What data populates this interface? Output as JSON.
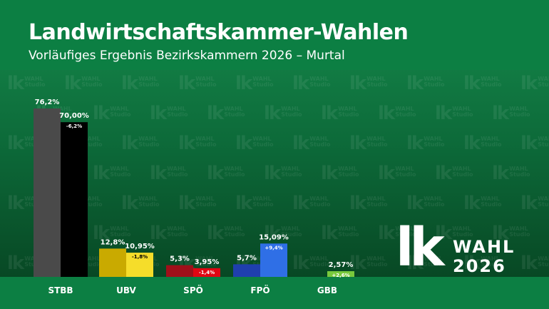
{
  "header": {
    "title": "Landwirtschaftskammer-Wahlen",
    "subtitle": "Vorläufiges Ergebnis Bezirkskammern 2026 – Murtal"
  },
  "watermark": {
    "mark": "lk",
    "word": "WAHL",
    "sub": "Studio"
  },
  "logo": {
    "mark": "lk",
    "word": "WAHL",
    "year": "2026"
  },
  "chart_data": {
    "type": "bar",
    "categories": [
      "STBB",
      "UBV",
      "SPÖ",
      "FPÖ",
      "GBB"
    ],
    "series": [
      {
        "values": [
          76.2,
          12.8,
          5.3,
          5.7,
          null
        ],
        "labels": [
          "76,2%",
          "12,8%",
          "5,3%",
          "5,7%",
          ""
        ]
      },
      {
        "values": [
          70.0,
          10.95,
          3.95,
          15.09,
          2.57
        ],
        "labels": [
          "70,00%",
          "10,95%",
          "3,95%",
          "15,09%",
          "2,57%"
        ]
      }
    ],
    "changes": [
      "-6,2%",
      "-1,8%",
      "-1,4%",
      "+9,4%",
      "+2,6%"
    ],
    "colors": {
      "previous": [
        "#4a4a4a",
        "#c9aa00",
        "#a0101a",
        "#1f3fae",
        "#4a4a4a"
      ],
      "current": [
        "#000000",
        "#f5dd2a",
        "#e30613",
        "#2f6fe6",
        "#78c93c"
      ],
      "change_text": [
        "#ffffff",
        "#000000",
        "#ffffff",
        "#ffffff",
        "#ffffff"
      ]
    },
    "ylim": [
      0,
      80
    ]
  }
}
